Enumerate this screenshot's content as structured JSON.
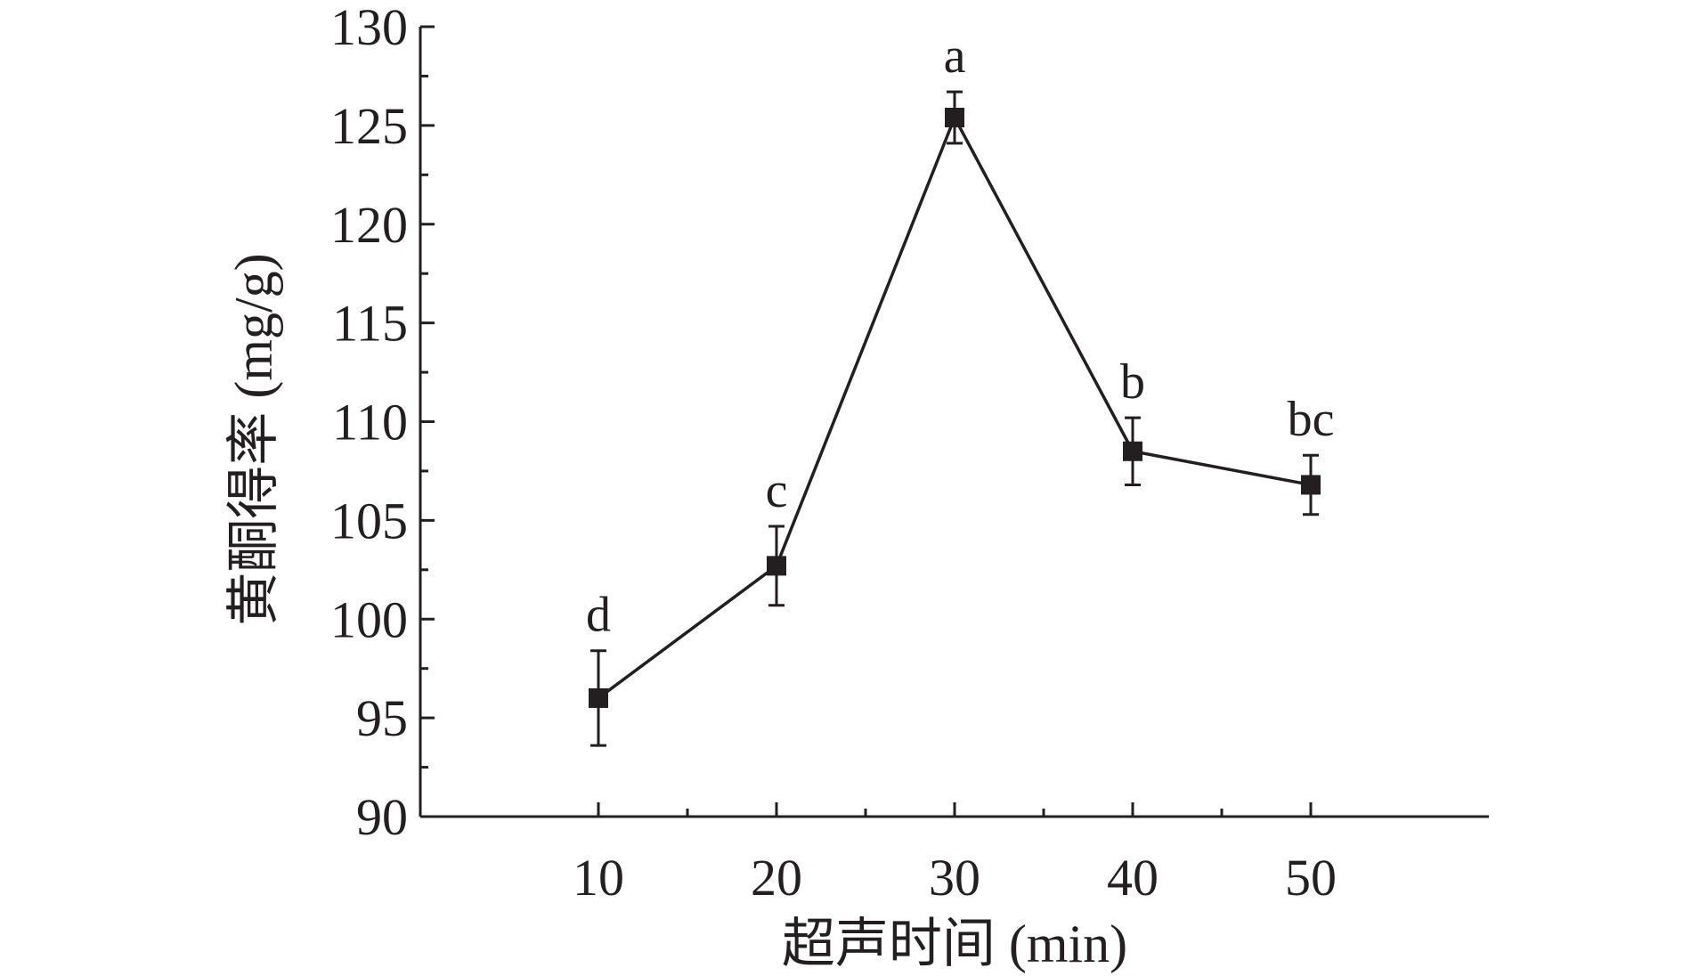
{
  "chart_data": {
    "type": "line",
    "x": [
      10,
      20,
      30,
      40,
      50
    ],
    "series": [
      {
        "values": [
          96.0,
          102.7,
          125.4,
          108.5,
          106.8
        ],
        "error": [
          2.4,
          2.0,
          1.3,
          1.7,
          1.5
        ],
        "significance": [
          "d",
          "c",
          "a",
          "b",
          "bc"
        ]
      }
    ],
    "xlabel": "超声时间 (min)",
    "ylabel": "黄酮得率 (mg/g)",
    "xlim": [
      0,
      60
    ],
    "ylim": [
      90,
      130
    ],
    "x_ticks": [
      "10",
      "20",
      "30",
      "40",
      "50"
    ],
    "y_ticks": [
      "90",
      "95",
      "100",
      "105",
      "110",
      "115",
      "120",
      "125",
      "130"
    ],
    "grid": false,
    "legend": "none",
    "colors": {
      "line": "#231f20",
      "marker": "#231f20",
      "axis": "#231f20"
    }
  }
}
